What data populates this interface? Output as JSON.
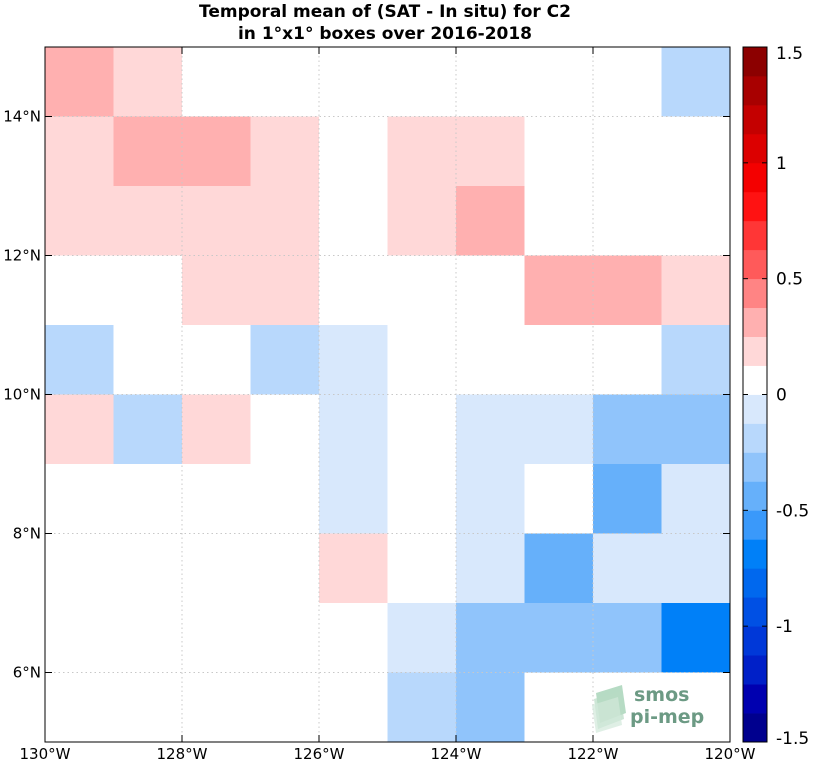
{
  "chart_data": {
    "type": "heatmap",
    "title_line1": "Temporal mean of (SAT - In situ) for C2",
    "title_line2": "in 1°x1° boxes over 2016-2018",
    "x_ticks": [
      {
        "value": -130,
        "label": "130°W"
      },
      {
        "value": -128,
        "label": "128°W"
      },
      {
        "value": -126,
        "label": "126°W"
      },
      {
        "value": -124,
        "label": "124°W"
      },
      {
        "value": -122,
        "label": "122°W"
      },
      {
        "value": -120,
        "label": "120°W"
      }
    ],
    "y_ticks": [
      {
        "value": 6,
        "label": "6°N"
      },
      {
        "value": 8,
        "label": "8°N"
      },
      {
        "value": 10,
        "label": "10°N"
      },
      {
        "value": 12,
        "label": "12°N"
      },
      {
        "value": 14,
        "label": "14°N"
      }
    ],
    "xlim": [
      -130,
      -120
    ],
    "ylim": [
      5,
      15
    ],
    "grid": true,
    "colorbar": {
      "min": -1.5,
      "max": 1.5,
      "step": 0.125,
      "ticks": [
        {
          "value": 1.5,
          "label": "1.5"
        },
        {
          "value": 1,
          "label": "1"
        },
        {
          "value": 0.5,
          "label": "0.5"
        },
        {
          "value": 0,
          "label": "0"
        },
        {
          "value": -0.5,
          "label": "-0.5"
        },
        {
          "value": -1,
          "label": "-1"
        },
        {
          "value": -1.5,
          "label": "-1.5"
        }
      ],
      "colors": [
        "#00008e",
        "#0000b0",
        "#0020c8",
        "#0038d8",
        "#0050e4",
        "#0068ee",
        "#0080f8",
        "#3a99fa",
        "#66b0fa",
        "#90c4fb",
        "#b8d8fc",
        "#d8e8fc",
        "#ffffff",
        "#ffd8d8",
        "#ffb0b0",
        "#ff8484",
        "#ff5a5a",
        "#ff3636",
        "#ff1212",
        "#f40000",
        "#dc0000",
        "#c40000",
        "#a80000",
        "#8c0000"
      ]
    },
    "cells": [
      {
        "lon": -130,
        "lat": 14,
        "value": 0.3
      },
      {
        "lon": -129,
        "lat": 14,
        "value": 0.15
      },
      {
        "lon": -121,
        "lat": 14,
        "value": -0.2
      },
      {
        "lon": -130,
        "lat": 13,
        "value": 0.15
      },
      {
        "lon": -129,
        "lat": 13,
        "value": 0.3
      },
      {
        "lon": -128,
        "lat": 13,
        "value": 0.3
      },
      {
        "lon": -127,
        "lat": 13,
        "value": 0.15
      },
      {
        "lon": -125,
        "lat": 13,
        "value": 0.15
      },
      {
        "lon": -124,
        "lat": 13,
        "value": 0.15
      },
      {
        "lon": -130,
        "lat": 12,
        "value": 0.15
      },
      {
        "lon": -129,
        "lat": 12,
        "value": 0.15
      },
      {
        "lon": -128,
        "lat": 12,
        "value": 0.15
      },
      {
        "lon": -127,
        "lat": 12,
        "value": 0.15
      },
      {
        "lon": -125,
        "lat": 12,
        "value": 0.15
      },
      {
        "lon": -124,
        "lat": 12,
        "value": 0.3
      },
      {
        "lon": -128,
        "lat": 11,
        "value": 0.15
      },
      {
        "lon": -127,
        "lat": 11,
        "value": 0.15
      },
      {
        "lon": -123,
        "lat": 11,
        "value": 0.3
      },
      {
        "lon": -122,
        "lat": 11,
        "value": 0.3
      },
      {
        "lon": -121,
        "lat": 11,
        "value": 0.15
      },
      {
        "lon": -130,
        "lat": 10,
        "value": -0.2
      },
      {
        "lon": -127,
        "lat": 10,
        "value": -0.2
      },
      {
        "lon": -126,
        "lat": 10,
        "value": -0.1
      },
      {
        "lon": -121,
        "lat": 10,
        "value": -0.2
      },
      {
        "lon": -130,
        "lat": 9,
        "value": 0.15
      },
      {
        "lon": -129,
        "lat": 9,
        "value": -0.2
      },
      {
        "lon": -128,
        "lat": 9,
        "value": 0.15
      },
      {
        "lon": -126,
        "lat": 9,
        "value": -0.1
      },
      {
        "lon": -124,
        "lat": 9,
        "value": -0.1
      },
      {
        "lon": -123,
        "lat": 9,
        "value": -0.1
      },
      {
        "lon": -122,
        "lat": 9,
        "value": -0.3
      },
      {
        "lon": -121,
        "lat": 9,
        "value": -0.3
      },
      {
        "lon": -126,
        "lat": 8,
        "value": -0.1
      },
      {
        "lon": -124,
        "lat": 8,
        "value": -0.1
      },
      {
        "lon": -122,
        "lat": 8,
        "value": -0.45
      },
      {
        "lon": -121,
        "lat": 8,
        "value": -0.1
      },
      {
        "lon": -126,
        "lat": 7,
        "value": 0.15
      },
      {
        "lon": -124,
        "lat": 7,
        "value": -0.1
      },
      {
        "lon": -123,
        "lat": 7,
        "value": -0.45
      },
      {
        "lon": -122,
        "lat": 7,
        "value": -0.1
      },
      {
        "lon": -121,
        "lat": 7,
        "value": -0.1
      },
      {
        "lon": -125,
        "lat": 6,
        "value": -0.1
      },
      {
        "lon": -124,
        "lat": 6,
        "value": -0.3
      },
      {
        "lon": -123,
        "lat": 6,
        "value": -0.3
      },
      {
        "lon": -122,
        "lat": 6,
        "value": -0.3
      },
      {
        "lon": -121,
        "lat": 6,
        "value": -0.75
      },
      {
        "lon": -125,
        "lat": 5,
        "value": -0.2
      },
      {
        "lon": -124,
        "lat": 5,
        "value": -0.3
      }
    ]
  },
  "logo": {
    "line1": "smos",
    "line2": "pi-mep"
  }
}
